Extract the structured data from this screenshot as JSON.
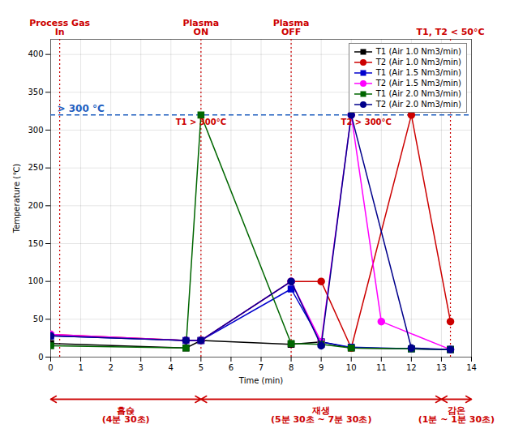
{
  "chart_data": {
    "type": "line",
    "xlabel": "Time (min)",
    "ylabel": "Temperature (℃)",
    "xlim": [
      0,
      14
    ],
    "ylim": [
      0,
      420
    ],
    "xticks": [
      0,
      1,
      2,
      3,
      4,
      5,
      6,
      7,
      8,
      9,
      10,
      11,
      12,
      13,
      14
    ],
    "yticks": [
      0,
      50,
      100,
      150,
      200,
      250,
      300,
      350,
      400
    ],
    "grid": true,
    "legend": "upper right",
    "series": [
      {
        "name": "T1 (Air 1.0 Nm3/min)",
        "color": "#000000",
        "marker": "square",
        "x": [
          0,
          4.5,
          5.0,
          8.0,
          9.0,
          10.0,
          12.0,
          13.3
        ],
        "values": [
          18,
          12,
          22,
          17,
          20,
          12,
          11,
          10
        ]
      },
      {
        "name": "T2 (Air 1.0 Nm3/min)",
        "color": "#CC0000",
        "marker": "circle",
        "x": [
          0,
          4.5,
          5.0,
          8.0,
          9.0,
          10.0,
          12.0,
          13.3
        ],
        "values": [
          30,
          22,
          22,
          100,
          100,
          12,
          320,
          47
        ]
      },
      {
        "name": "T1 (Air 1.5 Nm3/min)",
        "color": "#0000CD",
        "marker": "square",
        "x": [
          0,
          4.5,
          5.0,
          8.0,
          9.0,
          10.0,
          12.0,
          13.3
        ],
        "values": [
          28,
          22,
          22,
          90,
          20,
          13,
          11,
          10
        ]
      },
      {
        "name": "T2 (Air 1.5 Nm3/min)",
        "color": "#FF00FF",
        "marker": "circle",
        "x": [
          0,
          4.5,
          5.0,
          8.0,
          9.0,
          10.0,
          11.0,
          13.3
        ],
        "values": [
          30,
          22,
          22,
          100,
          20,
          320,
          47,
          10
        ]
      },
      {
        "name": "T1 (Air 2.0 Nm3/min)",
        "color": "#006600",
        "marker": "square",
        "x": [
          0,
          4.5,
          5.0,
          8.0,
          9.0,
          10.0,
          12.0,
          13.3
        ],
        "values": [
          15,
          12,
          320,
          18,
          17,
          12,
          11,
          10
        ]
      },
      {
        "name": "T2 (Air 2.0 Nm3/min)",
        "color": "#00008B",
        "marker": "circle",
        "x": [
          0,
          4.5,
          5.0,
          8.0,
          9.0,
          10.0,
          12.0,
          13.3
        ],
        "values": [
          28,
          22,
          22,
          100,
          15,
          320,
          12,
          10
        ]
      }
    ],
    "hlines": [
      {
        "y": 320,
        "label": "> 300 °C",
        "color": "#1E5EBF",
        "line_style": "dashed"
      }
    ],
    "vlines": [
      {
        "x": 0.3,
        "color": "#CC0000",
        "line_style": "dotted"
      },
      {
        "x": 5.0,
        "color": "#CC0000",
        "line_style": "dotted"
      },
      {
        "x": 8.0,
        "color": "#CC0000",
        "line_style": "dotted"
      },
      {
        "x": 13.3,
        "color": "#CC0000",
        "line_style": "dotted"
      }
    ],
    "top_labels": [
      {
        "text": "Process Gas\nIn",
        "x": 0.3,
        "color": "#CC0000"
      },
      {
        "text": "Plasma\nON",
        "x": 5.0,
        "color": "#CC0000"
      },
      {
        "text": "Plasma\nOFF",
        "x": 8.0,
        "color": "#CC0000"
      },
      {
        "text": "T1, T2 < 50°C",
        "x": 13.3,
        "color": "#CC0000"
      }
    ],
    "sub_labels": [
      {
        "text": "T1 > 300°C",
        "x": 5.0,
        "color": "#CC0000"
      },
      {
        "text": "T2 > 300°C",
        "x": 10.5,
        "color": "#CC0000"
      }
    ],
    "spans": [
      {
        "x1": 0.0,
        "x2": 5.0
      },
      {
        "x1": 5.0,
        "x2": 13.0
      },
      {
        "x1": 13.0,
        "x2": 14.0
      }
    ],
    "span_color": "#CC0000",
    "span_labels": [
      {
        "text": "흡슩\n(4분 30초)",
        "x": 2.5
      },
      {
        "text": "재생\n(5분 30초 ~ 7분 30초)",
        "x": 9.0
      },
      {
        "text": "감온\n(1분 ~ 1분 30초)",
        "x": 13.5
      }
    ]
  }
}
